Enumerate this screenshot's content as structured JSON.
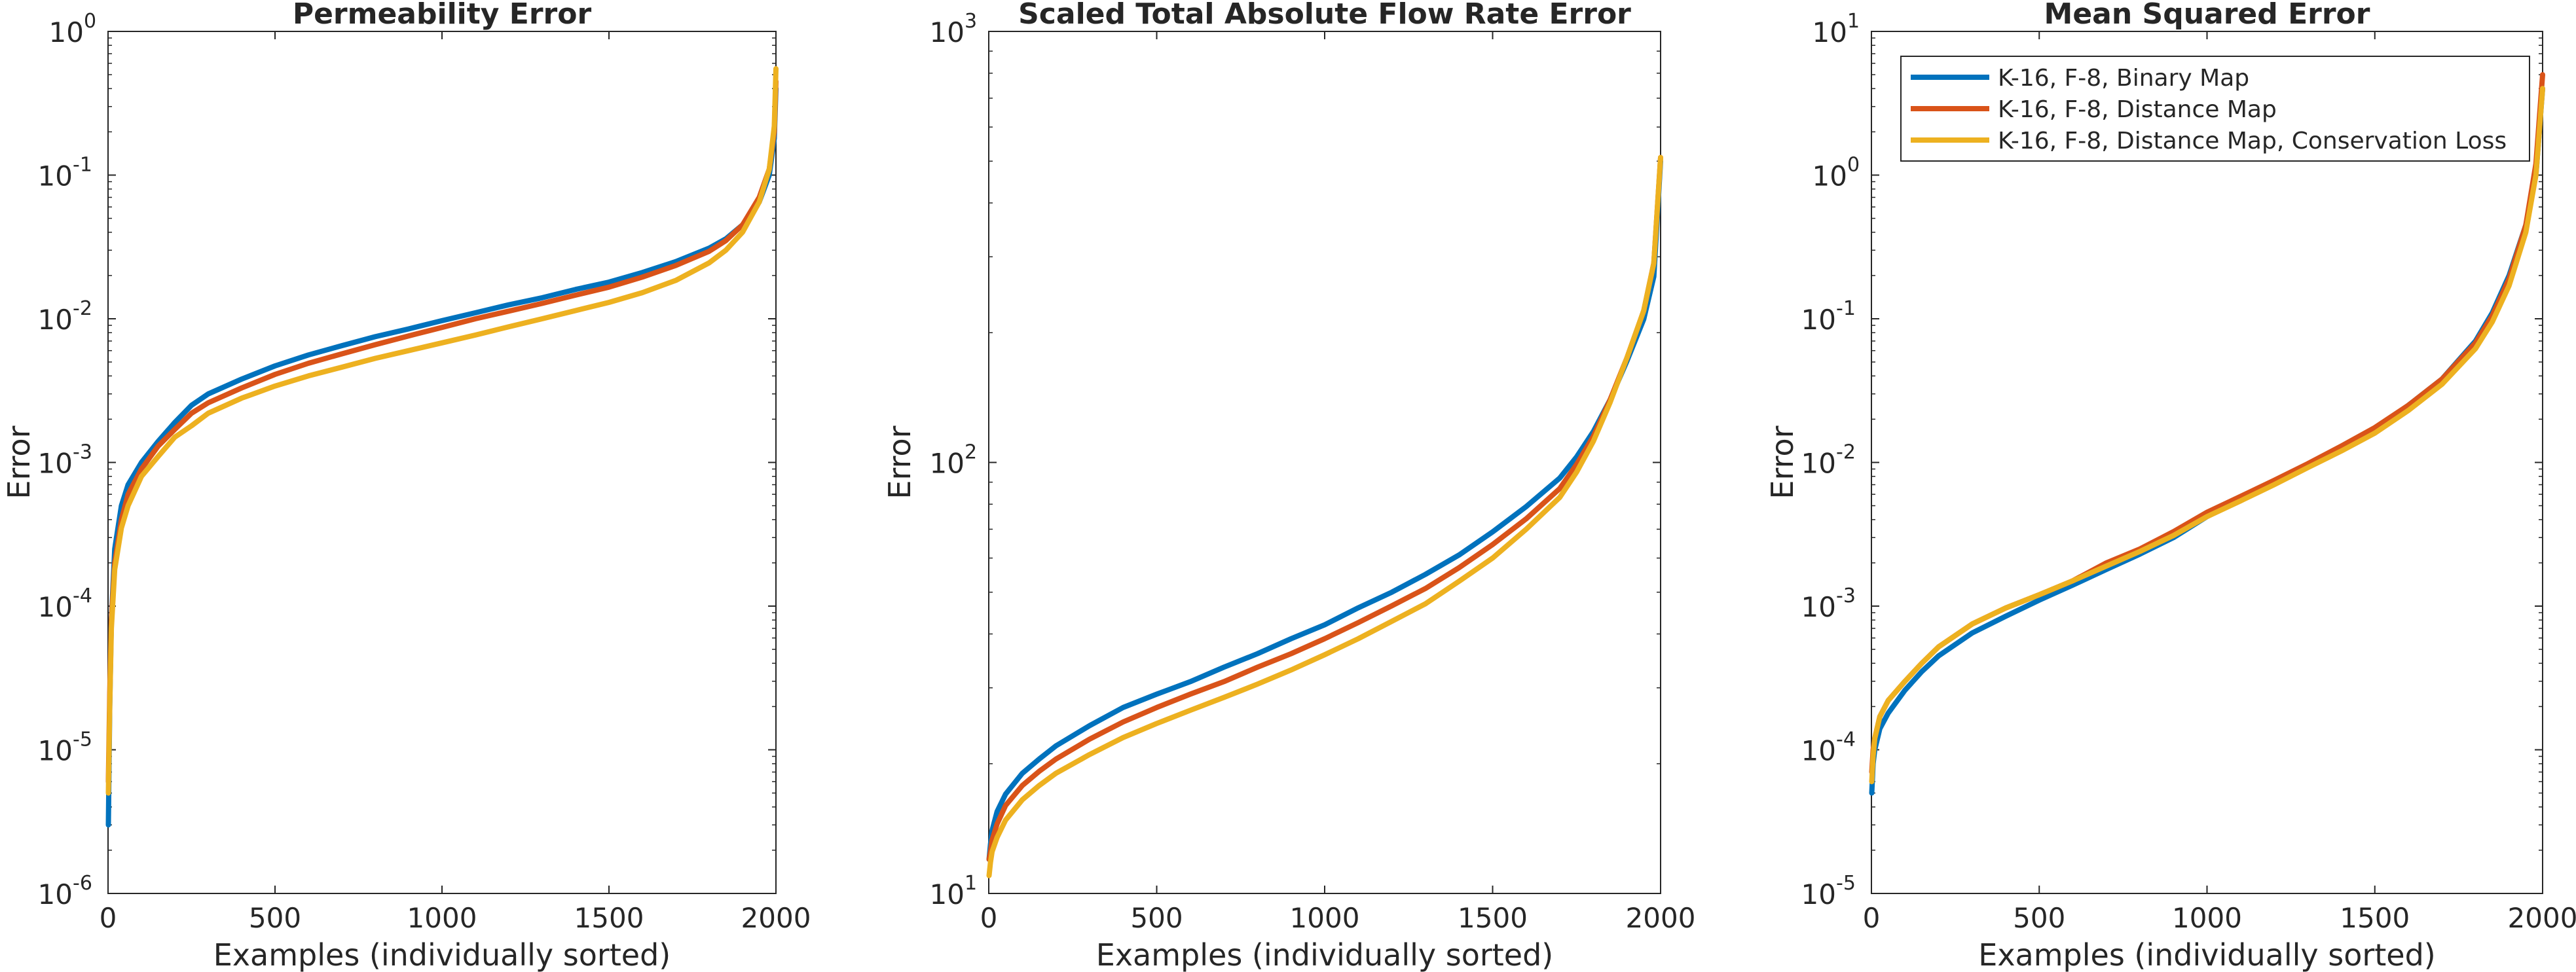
{
  "series_legend": [
    {
      "name": "K-16, F-8, Binary Map",
      "color": "#0072BD"
    },
    {
      "name": "K-16, F-8, Distance Map",
      "color": "#D95319"
    },
    {
      "name": "K-16, F-8, Distance Map, Conservation Loss",
      "color": "#EDB120"
    }
  ],
  "chart_data": [
    {
      "type": "line",
      "title": "Permeability Error",
      "xlabel": "Examples (individually sorted)",
      "ylabel": "Error",
      "xlim": [
        0,
        2000
      ],
      "ylim": [
        1e-06,
        1
      ],
      "yscale": "log",
      "xticks": [
        "0",
        "500",
        "1000",
        "1500",
        "2000"
      ],
      "yticks": [
        {
          "base": "10",
          "exp": "-6"
        },
        {
          "base": "10",
          "exp": "-5"
        },
        {
          "base": "10",
          "exp": "-4"
        },
        {
          "base": "10",
          "exp": "-3"
        },
        {
          "base": "10",
          "exp": "-2"
        },
        {
          "base": "10",
          "exp": "-1"
        },
        {
          "base": "10",
          "exp": "0"
        }
      ],
      "grid": false,
      "legend": "none",
      "x": [
        1,
        5,
        10,
        20,
        40,
        60,
        100,
        150,
        200,
        250,
        300,
        400,
        500,
        600,
        700,
        800,
        900,
        1000,
        1100,
        1200,
        1300,
        1400,
        1500,
        1600,
        1700,
        1800,
        1850,
        1900,
        1950,
        1980,
        1995,
        2000
      ],
      "series": [
        {
          "name": "K-16, F-8, Binary Map",
          "values": [
            3e-06,
            2e-05,
            8e-05,
            0.00025,
            0.0005,
            0.0007,
            0.001,
            0.0014,
            0.0019,
            0.0025,
            0.003,
            0.0038,
            0.0047,
            0.0056,
            0.0065,
            0.0075,
            0.0085,
            0.0097,
            0.011,
            0.0125,
            0.014,
            0.016,
            0.018,
            0.021,
            0.025,
            0.031,
            0.036,
            0.045,
            0.065,
            0.1,
            0.18,
            0.4
          ]
        },
        {
          "name": "K-16, F-8, Distance Map",
          "values": [
            6e-06,
            2.5e-05,
            8e-05,
            0.0002,
            0.0004,
            0.0006,
            0.0009,
            0.0013,
            0.0017,
            0.0022,
            0.0026,
            0.0033,
            0.0041,
            0.0049,
            0.0057,
            0.0066,
            0.0076,
            0.0087,
            0.01,
            0.0113,
            0.0128,
            0.0146,
            0.0166,
            0.0195,
            0.0235,
            0.0295,
            0.035,
            0.045,
            0.07,
            0.11,
            0.2,
            0.45
          ]
        },
        {
          "name": "K-16, F-8, Distance Map, Conservation Loss",
          "values": [
            5e-06,
            2e-05,
            7e-05,
            0.00018,
            0.00035,
            0.0005,
            0.0008,
            0.0011,
            0.0015,
            0.0018,
            0.0022,
            0.0028,
            0.0034,
            0.004,
            0.0046,
            0.0053,
            0.006,
            0.0068,
            0.0077,
            0.0088,
            0.01,
            0.0114,
            0.013,
            0.0152,
            0.0185,
            0.0245,
            0.03,
            0.04,
            0.065,
            0.11,
            0.22,
            0.55
          ]
        }
      ]
    },
    {
      "type": "line",
      "title": "Scaled Total Absolute Flow Rate Error",
      "xlabel": "Examples (individually sorted)",
      "ylabel": "Error",
      "xlim": [
        0,
        2000
      ],
      "ylim": [
        10,
        1000
      ],
      "yscale": "log",
      "xticks": [
        "0",
        "500",
        "1000",
        "1500",
        "2000"
      ],
      "yticks": [
        {
          "base": "10",
          "exp": "1"
        },
        {
          "base": "10",
          "exp": "2"
        },
        {
          "base": "10",
          "exp": "3"
        }
      ],
      "grid": false,
      "legend": "none",
      "x": [
        1,
        5,
        10,
        25,
        50,
        100,
        150,
        200,
        300,
        400,
        500,
        600,
        700,
        800,
        900,
        1000,
        1100,
        1200,
        1300,
        1400,
        1500,
        1600,
        1700,
        1750,
        1800,
        1850,
        1900,
        1950,
        1980,
        2000
      ],
      "series": [
        {
          "name": "K-16, F-8, Binary Map",
          "values": [
            12,
            13,
            14,
            15.5,
            17,
            19,
            20.5,
            22,
            24.5,
            27,
            29,
            31,
            33.5,
            36,
            39,
            42,
            46,
            50,
            55,
            61,
            69,
            79,
            92,
            103,
            118,
            140,
            172,
            215,
            270,
            500
          ]
        },
        {
          "name": "K-16, F-8, Distance Map",
          "values": [
            12,
            12.5,
            13.3,
            14.5,
            16,
            17.8,
            19.2,
            20.5,
            22.8,
            25,
            27,
            29,
            31,
            33.5,
            36,
            39,
            42.5,
            46.5,
            51,
            57,
            64.5,
            74,
            87,
            99,
            115,
            140,
            175,
            225,
            290,
            510
          ]
        },
        {
          "name": "K-16, F-8, Distance Map, Conservation Loss",
          "values": [
            11,
            11.8,
            12.5,
            13.5,
            14.8,
            16.5,
            17.8,
            19,
            21,
            23,
            24.8,
            26.6,
            28.5,
            30.6,
            33,
            35.8,
            39,
            42.8,
            47,
            53,
            60,
            70,
            83,
            95,
            112,
            138,
            175,
            225,
            290,
            510
          ]
        }
      ]
    },
    {
      "type": "line",
      "title": "Mean Squared Error",
      "xlabel": "Examples (individually sorted)",
      "ylabel": "Error",
      "xlim": [
        0,
        2000
      ],
      "ylim": [
        1e-05,
        10
      ],
      "yscale": "log",
      "xticks": [
        "0",
        "500",
        "1000",
        "1500",
        "2000"
      ],
      "yticks": [
        {
          "base": "10",
          "exp": "-5"
        },
        {
          "base": "10",
          "exp": "-4"
        },
        {
          "base": "10",
          "exp": "-3"
        },
        {
          "base": "10",
          "exp": "-2"
        },
        {
          "base": "10",
          "exp": "-1"
        },
        {
          "base": "10",
          "exp": "0"
        },
        {
          "base": "10",
          "exp": "1"
        }
      ],
      "grid": false,
      "legend": "top-right",
      "x": [
        1,
        5,
        10,
        25,
        50,
        100,
        150,
        200,
        300,
        400,
        500,
        600,
        700,
        800,
        900,
        1000,
        1100,
        1200,
        1300,
        1400,
        1500,
        1600,
        1700,
        1800,
        1850,
        1900,
        1950,
        1980,
        2000
      ],
      "series": [
        {
          "name": "K-16, F-8, Binary Map",
          "values": [
            5e-05,
            8e-05,
            0.0001,
            0.00014,
            0.00018,
            0.00026,
            0.00035,
            0.00045,
            0.00065,
            0.00085,
            0.0011,
            0.0014,
            0.0018,
            0.0023,
            0.003,
            0.0042,
            0.0055,
            0.0072,
            0.0095,
            0.0125,
            0.017,
            0.025,
            0.038,
            0.07,
            0.11,
            0.2,
            0.45,
            1.0,
            4.0
          ]
        },
        {
          "name": "K-16, F-8, Distance Map",
          "values": [
            7e-05,
            0.0001,
            0.00012,
            0.00017,
            0.00022,
            0.0003,
            0.0004,
            0.00052,
            0.00075,
            0.00097,
            0.0012,
            0.0015,
            0.002,
            0.0025,
            0.0033,
            0.0045,
            0.0058,
            0.0075,
            0.0098,
            0.013,
            0.0175,
            0.025,
            0.038,
            0.068,
            0.105,
            0.19,
            0.45,
            1.2,
            5.0
          ]
        },
        {
          "name": "K-16, F-8, Distance Map, Conservation Loss",
          "values": [
            6e-05,
            9e-05,
            0.00012,
            0.00017,
            0.00022,
            0.0003,
            0.0004,
            0.00052,
            0.00075,
            0.00097,
            0.0012,
            0.0015,
            0.0019,
            0.0024,
            0.0031,
            0.0042,
            0.0054,
            0.007,
            0.0092,
            0.012,
            0.016,
            0.023,
            0.035,
            0.062,
            0.095,
            0.17,
            0.4,
            1.0,
            4.0
          ]
        }
      ]
    }
  ]
}
